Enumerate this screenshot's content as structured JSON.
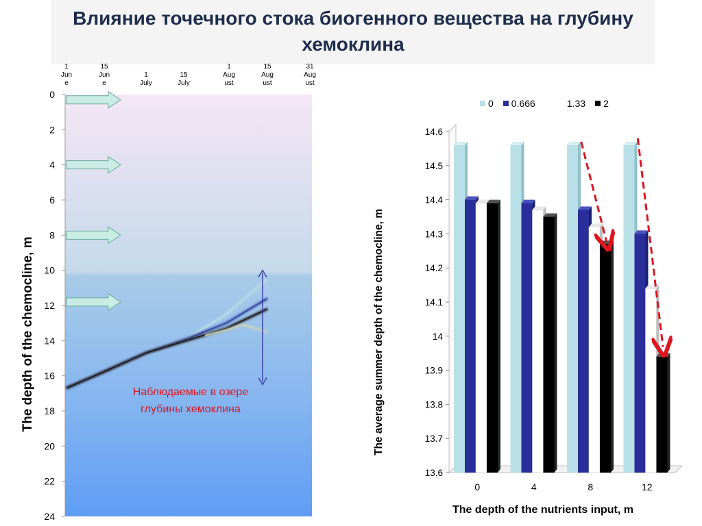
{
  "title": "Влияние точечного стока биогенного вещества на глубину хемоклина",
  "left_panel": {
    "observed_label": "Наблюдаемые в озере глубины хемоклина"
  },
  "chart_data": [
    {
      "type": "line",
      "ylabel": "The depth of the chemocline, m",
      "xlabel": "",
      "y_axis": {
        "inverted": true,
        "range": [
          0,
          24
        ],
        "ticks": [
          0,
          2,
          4,
          6,
          8,
          10,
          12,
          14,
          16,
          18,
          20,
          22,
          24
        ]
      },
      "x_ticks": [
        {
          "label": "1 June",
          "lines": [
            "1",
            "Jun",
            "e"
          ]
        },
        {
          "label": "15 June",
          "lines": [
            "15",
            "Jun",
            "e"
          ]
        },
        {
          "label": "1 July",
          "lines": [
            "1",
            "July"
          ]
        },
        {
          "label": "15 July",
          "lines": [
            "15",
            "July"
          ]
        },
        {
          "label": "1 August",
          "lines": [
            "1",
            "Aug",
            "ust"
          ]
        },
        {
          "label": "15 August",
          "lines": [
            "15",
            "Aug",
            "ust"
          ]
        },
        {
          "label": "31 August",
          "lines": [
            "31",
            "Aug",
            "ust"
          ]
        }
      ],
      "input_arrow_depths": [
        0.3,
        4.0,
        8.0,
        11.8
      ],
      "observed_range": [
        10,
        16.5
      ],
      "series": [
        {
          "color": "#b9dde3",
          "points": [
            [
              0,
              16.7
            ],
            [
              15,
              15.7
            ],
            [
              30,
              14.7
            ],
            [
              45,
              13.9
            ],
            [
              60,
              12.5
            ],
            [
              75,
              10.5
            ]
          ]
        },
        {
          "color": "#2e3d9e",
          "points": [
            [
              0,
              16.7
            ],
            [
              15,
              15.7
            ],
            [
              30,
              14.7
            ],
            [
              45,
              13.9
            ],
            [
              60,
              13.0
            ],
            [
              75,
              11.6
            ]
          ]
        },
        {
          "color": "#9aa6c8",
          "points": [
            [
              0,
              16.7
            ],
            [
              15,
              15.7
            ],
            [
              30,
              14.7
            ],
            [
              45,
              14.0
            ],
            [
              60,
              13.4
            ],
            [
              75,
              12.2
            ]
          ]
        },
        {
          "color": "#111111",
          "points": [
            [
              0,
              16.7
            ],
            [
              15,
              15.7
            ],
            [
              30,
              14.7
            ],
            [
              45,
              14.0
            ],
            [
              60,
              13.3
            ],
            [
              75,
              12.2
            ]
          ]
        },
        {
          "color": "#c9d4b8",
          "points": [
            [
              52,
              13.7
            ],
            [
              60,
              13.4
            ],
            [
              66,
              13.1
            ],
            [
              75,
              13.5
            ]
          ]
        }
      ]
    },
    {
      "type": "bar",
      "ylabel": "The average summer depth of the chemocline, m",
      "xlabel": "The depth of the nutrients input, m",
      "categories": [
        "0",
        "4",
        "8",
        "12"
      ],
      "ylim": [
        13.6,
        14.6
      ],
      "y_ticks": [
        "13.6",
        "13.7",
        "13.8",
        "13.9",
        "14",
        "14.1",
        "14.2",
        "14.3",
        "14.4",
        "14.5",
        "14.6"
      ],
      "legend_position": "top",
      "series": [
        {
          "name": "0",
          "values": [
            14.56,
            14.56,
            14.56,
            14.56
          ],
          "color": "#b9e0e6"
        },
        {
          "name": "0.666",
          "values": [
            14.4,
            14.39,
            14.37,
            14.3
          ],
          "color": "#2a2e9a"
        },
        {
          "name": "1.33",
          "values": [
            14.39,
            14.37,
            14.32,
            14.14
          ],
          "color": "#ffffff"
        },
        {
          "name": "2",
          "values": [
            14.39,
            14.35,
            14.27,
            13.94
          ],
          "color": "#000000"
        }
      ],
      "trend_arrows": [
        {
          "category": "8",
          "from_value": 14.57,
          "to_value": 14.27
        },
        {
          "category": "12",
          "from_value": 14.58,
          "to_value": 13.96
        }
      ]
    }
  ]
}
